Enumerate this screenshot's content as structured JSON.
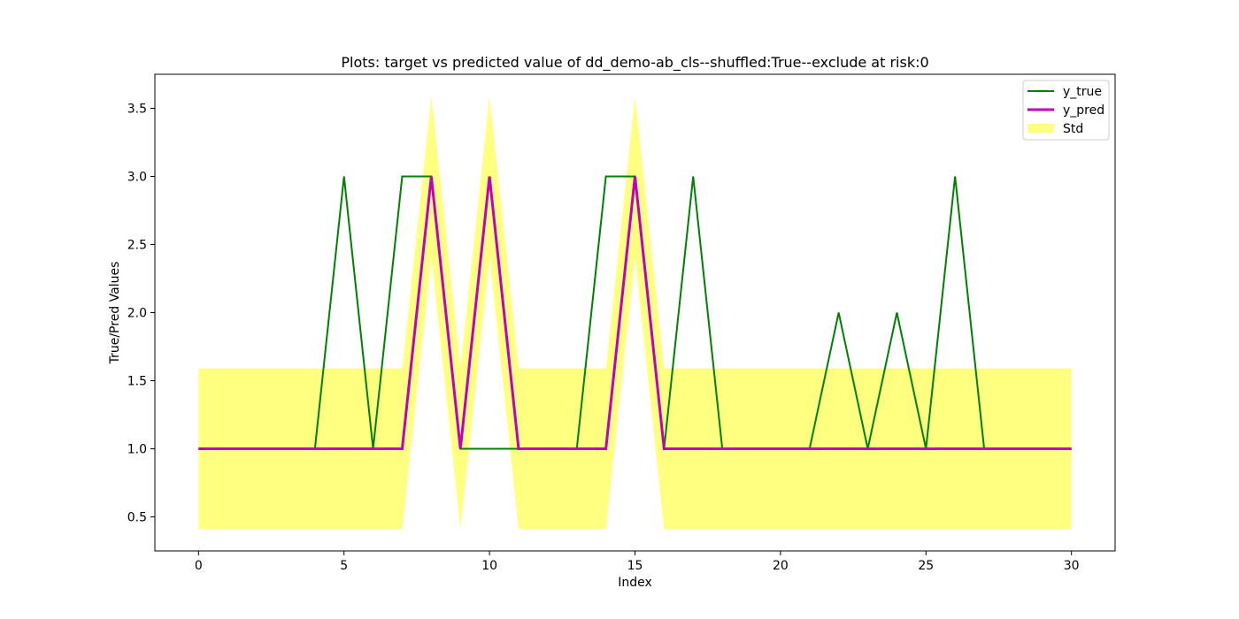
{
  "chart_data": {
    "type": "line",
    "title": "Plots: target vs predicted value of dd_demo-ab_cls--shuffled:True--exclude at risk:0",
    "xlabel": "Index",
    "ylabel": "True/Pred Values",
    "xlim": [
      -1.5,
      31.5
    ],
    "ylim": [
      0.25,
      3.75
    ],
    "x_ticks": [
      0,
      5,
      10,
      15,
      20,
      25,
      30
    ],
    "x_tick_labels": [
      "0",
      "5",
      "10",
      "15",
      "20",
      "25",
      "30"
    ],
    "y_ticks": [
      0.5,
      1.0,
      1.5,
      2.0,
      2.5,
      3.0,
      3.5
    ],
    "y_tick_labels": [
      "0.5",
      "1.0",
      "1.5",
      "2.0",
      "2.5",
      "3.0",
      "3.5"
    ],
    "grid": false,
    "legend_position": "top-right",
    "x": [
      0,
      1,
      2,
      3,
      4,
      5,
      6,
      7,
      8,
      9,
      10,
      11,
      12,
      13,
      14,
      15,
      16,
      17,
      18,
      19,
      20,
      21,
      22,
      23,
      24,
      25,
      26,
      27,
      28,
      29,
      30
    ],
    "series": [
      {
        "name": "y_true",
        "color": "#008000",
        "values": [
          1,
          1,
          1,
          1,
          1,
          3,
          1,
          3,
          3,
          1,
          1,
          1,
          1,
          1,
          3,
          3,
          1,
          3,
          1,
          1,
          1,
          1,
          2,
          1,
          2,
          1,
          3,
          1,
          1,
          1,
          1
        ]
      },
      {
        "name": "y_pred",
        "color": "#bf00bf",
        "values": [
          1,
          1,
          1,
          1,
          1,
          1,
          1,
          1,
          3,
          1,
          3,
          1,
          1,
          1,
          1,
          3,
          1,
          1,
          1,
          1,
          1,
          1,
          1,
          1,
          1,
          1,
          1,
          1,
          1,
          1,
          1
        ]
      }
    ],
    "band": {
      "name": "Std",
      "color": "#ffff80",
      "lower": [
        0.41,
        0.41,
        0.41,
        0.41,
        0.41,
        0.41,
        0.41,
        0.41,
        2.41,
        0.41,
        2.41,
        0.41,
        0.41,
        0.41,
        0.41,
        2.41,
        0.41,
        0.41,
        0.41,
        0.41,
        0.41,
        0.41,
        0.41,
        0.41,
        0.41,
        0.41,
        0.41,
        0.41,
        0.41,
        0.41,
        0.41
      ],
      "upper": [
        1.59,
        1.59,
        1.59,
        1.59,
        1.59,
        1.59,
        1.59,
        1.59,
        3.59,
        1.59,
        3.59,
        1.59,
        1.59,
        1.59,
        1.59,
        3.59,
        1.59,
        1.59,
        1.59,
        1.59,
        1.59,
        1.59,
        1.59,
        1.59,
        1.59,
        1.59,
        1.59,
        1.59,
        1.59,
        1.59,
        1.59
      ]
    }
  }
}
